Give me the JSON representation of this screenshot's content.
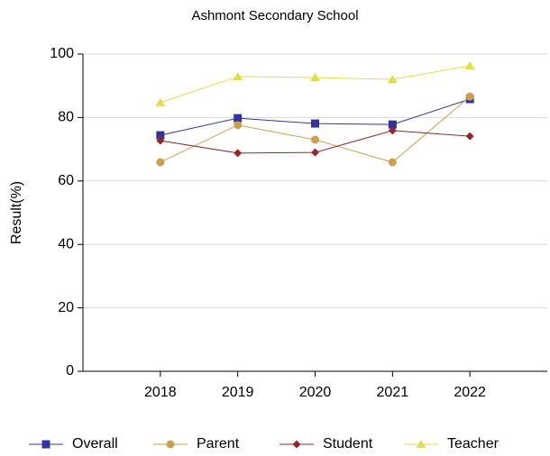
{
  "chart_data": {
    "type": "line",
    "title": "Ashmont Secondary School",
    "y_label": "Result(%)",
    "x": [
      2018,
      2019,
      2020,
      2021,
      2022
    ],
    "xlim": [
      2017,
      2023
    ],
    "xticks": [
      2018,
      2019,
      2020,
      2021,
      2022
    ],
    "ylim": [
      0,
      100
    ],
    "yticks": [
      0,
      20,
      40,
      60,
      80,
      100
    ],
    "grid": true,
    "legend": "bottom",
    "series": [
      {
        "name": "Overall",
        "color": "#33339e",
        "marker": "square",
        "values": [
          74.4,
          79.8,
          78.1,
          77.8,
          85.8
        ]
      },
      {
        "name": "Parent",
        "color": "#c9a04e",
        "marker": "circle",
        "values": [
          65.9,
          77.6,
          73.0,
          65.9,
          86.6
        ]
      },
      {
        "name": "Student",
        "color": "#8c2a2a",
        "marker": "diamond",
        "values": [
          72.7,
          68.8,
          69.0,
          75.9,
          74.1
        ]
      },
      {
        "name": "Teacher",
        "color": "#dede4e",
        "marker": "triangle",
        "values": [
          84.7,
          92.9,
          92.6,
          92.0,
          96.3
        ]
      }
    ]
  }
}
